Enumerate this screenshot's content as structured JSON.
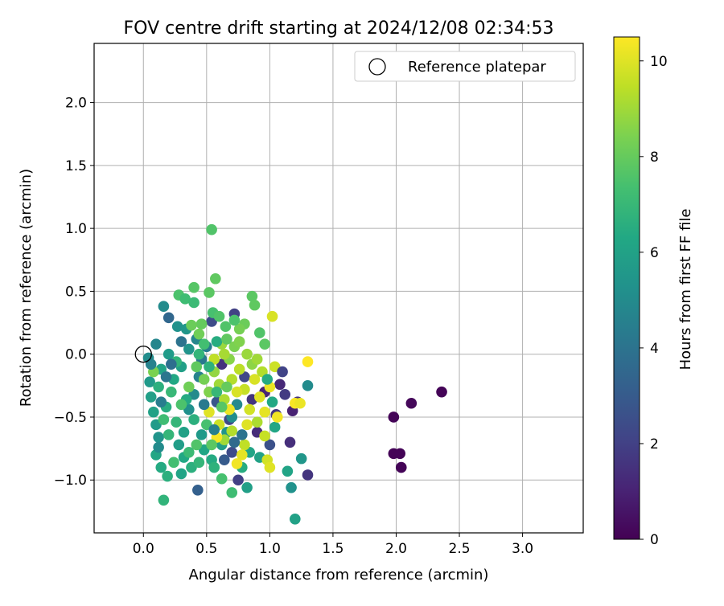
{
  "chart_data": {
    "type": "scatter",
    "title": "FOV centre drift starting at 2024/12/08 02:34:53",
    "xlabel": "Angular distance from reference (arcmin)",
    "ylabel": "Rotation from reference (arcmin)",
    "xlim": [
      -0.39,
      3.48
    ],
    "ylim": [
      -1.42,
      2.47
    ],
    "xticks": [
      0.0,
      0.5,
      1.0,
      1.5,
      2.0,
      2.5,
      3.0
    ],
    "xtick_labels": [
      "0.0",
      "0.5",
      "1.0",
      "1.5",
      "2.0",
      "2.5",
      "3.0"
    ],
    "yticks": [
      -1.0,
      -0.5,
      0.0,
      0.5,
      1.0,
      1.5,
      2.0
    ],
    "ytick_labels": [
      "−1.0",
      "−0.5",
      "0.0",
      "0.5",
      "1.0",
      "1.5",
      "2.0"
    ],
    "grid": true,
    "legend": {
      "placement": "top-right",
      "entries": [
        {
          "label": "Reference platepar",
          "marker": "open-circle"
        }
      ]
    },
    "reference_point": {
      "x": 0.0,
      "y": 0.0
    },
    "colorbar": {
      "label": "Hours from first FF file",
      "range": [
        0,
        10.5
      ],
      "ticks": [
        0,
        2,
        4,
        6,
        8,
        10
      ],
      "tick_labels": [
        "0",
        "2",
        "4",
        "6",
        "8",
        "10"
      ],
      "colormap": "viridis"
    },
    "points": [
      {
        "x": 1.98,
        "y": -0.5,
        "h": 0.1
      },
      {
        "x": 2.12,
        "y": -0.39,
        "h": 0.2
      },
      {
        "x": 2.36,
        "y": -0.3,
        "h": 0.1
      },
      {
        "x": 1.98,
        "y": -0.79,
        "h": 0.1
      },
      {
        "x": 2.03,
        "y": -0.79,
        "h": 0.1
      },
      {
        "x": 2.04,
        "y": -0.9,
        "h": 0.1
      },
      {
        "x": 1.3,
        "y": -0.96,
        "h": 1.6
      },
      {
        "x": 1.16,
        "y": -0.7,
        "h": 1.4
      },
      {
        "x": 1.08,
        "y": -0.24,
        "h": 1.2
      },
      {
        "x": 1.12,
        "y": -0.32,
        "h": 1.8
      },
      {
        "x": 1.18,
        "y": -0.45,
        "h": 1.0
      },
      {
        "x": 1.22,
        "y": -0.38,
        "h": 1.5
      },
      {
        "x": 1.05,
        "y": -0.48,
        "h": 1.7
      },
      {
        "x": 0.72,
        "y": 0.32,
        "h": 2.0
      },
      {
        "x": 0.54,
        "y": 0.26,
        "h": 2.4
      },
      {
        "x": 0.96,
        "y": -0.3,
        "h": 1.1
      },
      {
        "x": 0.9,
        "y": -0.62,
        "h": 1.3
      },
      {
        "x": 0.68,
        "y": -0.52,
        "h": 2.3
      },
      {
        "x": 0.75,
        "y": -1.0,
        "h": 2.0
      },
      {
        "x": 0.43,
        "y": -1.08,
        "h": 3.2
      },
      {
        "x": 0.2,
        "y": 0.29,
        "h": 3.5
      },
      {
        "x": 0.62,
        "y": -0.08,
        "h": 1.5
      },
      {
        "x": 0.8,
        "y": -0.18,
        "h": 2.2
      },
      {
        "x": 0.58,
        "y": -0.38,
        "h": 2.8
      },
      {
        "x": 0.86,
        "y": -0.36,
        "h": 1.6
      },
      {
        "x": 1.0,
        "y": -0.72,
        "h": 2.6
      },
      {
        "x": 0.7,
        "y": -0.78,
        "h": 2.4
      },
      {
        "x": 0.16,
        "y": 0.38,
        "h": 5.0
      },
      {
        "x": 0.27,
        "y": 0.22,
        "h": 5.3
      },
      {
        "x": 0.34,
        "y": 0.2,
        "h": 5.5
      },
      {
        "x": 0.1,
        "y": 0.08,
        "h": 4.8
      },
      {
        "x": 0.04,
        "y": -0.03,
        "h": 5.1
      },
      {
        "x": 0.05,
        "y": -0.22,
        "h": 5.6
      },
      {
        "x": 0.06,
        "y": -0.34,
        "h": 5.9
      },
      {
        "x": 0.08,
        "y": -0.46,
        "h": 6.0
      },
      {
        "x": 0.1,
        "y": -0.56,
        "h": 5.7
      },
      {
        "x": 0.12,
        "y": -0.66,
        "h": 5.4
      },
      {
        "x": 0.1,
        "y": -0.8,
        "h": 6.2
      },
      {
        "x": 0.14,
        "y": -0.9,
        "h": 6.4
      },
      {
        "x": 0.19,
        "y": -0.97,
        "h": 6.6
      },
      {
        "x": 0.16,
        "y": -1.16,
        "h": 6.8
      },
      {
        "x": 0.3,
        "y": -0.95,
        "h": 6.1
      },
      {
        "x": 0.28,
        "y": -0.72,
        "h": 5.8
      },
      {
        "x": 0.18,
        "y": -0.42,
        "h": 6.5
      },
      {
        "x": 0.22,
        "y": -0.3,
        "h": 7.0
      },
      {
        "x": 0.26,
        "y": -0.54,
        "h": 6.9
      },
      {
        "x": 0.32,
        "y": -0.62,
        "h": 6.0
      },
      {
        "x": 0.36,
        "y": -0.44,
        "h": 5.2
      },
      {
        "x": 0.4,
        "y": -0.32,
        "h": 5.0
      },
      {
        "x": 0.44,
        "y": -0.18,
        "h": 4.6
      },
      {
        "x": 0.46,
        "y": -0.04,
        "h": 4.2
      },
      {
        "x": 0.5,
        "y": 0.06,
        "h": 4.4
      },
      {
        "x": 0.42,
        "y": 0.12,
        "h": 4.8
      },
      {
        "x": 0.36,
        "y": 0.04,
        "h": 5.4
      },
      {
        "x": 0.3,
        "y": -0.1,
        "h": 5.9
      },
      {
        "x": 0.24,
        "y": -0.2,
        "h": 6.3
      },
      {
        "x": 0.14,
        "y": -0.12,
        "h": 6.1
      },
      {
        "x": 0.2,
        "y": 0.0,
        "h": 5.7
      },
      {
        "x": 0.12,
        "y": -0.26,
        "h": 6.6
      },
      {
        "x": 0.32,
        "y": -0.82,
        "h": 6.3
      },
      {
        "x": 0.38,
        "y": -0.9,
        "h": 6.6
      },
      {
        "x": 0.44,
        "y": -0.86,
        "h": 6.9
      },
      {
        "x": 0.48,
        "y": -0.76,
        "h": 6.2
      },
      {
        "x": 0.54,
        "y": -0.84,
        "h": 6.4
      },
      {
        "x": 0.56,
        "y": -0.9,
        "h": 6.7
      },
      {
        "x": 0.62,
        "y": -0.72,
        "h": 5.8
      },
      {
        "x": 0.66,
        "y": -0.62,
        "h": 5.4
      },
      {
        "x": 0.7,
        "y": -0.5,
        "h": 5.1
      },
      {
        "x": 0.74,
        "y": -0.4,
        "h": 4.9
      },
      {
        "x": 0.78,
        "y": -0.9,
        "h": 6.5
      },
      {
        "x": 0.84,
        "y": -0.78,
        "h": 6.1
      },
      {
        "x": 0.92,
        "y": -0.82,
        "h": 6.0
      },
      {
        "x": 1.04,
        "y": -0.58,
        "h": 6.2
      },
      {
        "x": 1.14,
        "y": -0.93,
        "h": 6.1
      },
      {
        "x": 1.25,
        "y": -0.83,
        "h": 5.5
      },
      {
        "x": 1.3,
        "y": -0.25,
        "h": 5.0
      },
      {
        "x": 1.17,
        "y": -1.06,
        "h": 5.3
      },
      {
        "x": 1.2,
        "y": -1.31,
        "h": 6.0
      },
      {
        "x": 0.82,
        "y": -1.06,
        "h": 5.9
      },
      {
        "x": 0.7,
        "y": -1.1,
        "h": 7.2
      },
      {
        "x": 0.62,
        "y": -0.99,
        "h": 7.4
      },
      {
        "x": 0.4,
        "y": 0.53,
        "h": 7.7
      },
      {
        "x": 0.52,
        "y": 0.49,
        "h": 7.8
      },
      {
        "x": 0.57,
        "y": 0.6,
        "h": 7.9
      },
      {
        "x": 0.54,
        "y": 0.99,
        "h": 7.6
      },
      {
        "x": 0.28,
        "y": 0.47,
        "h": 7.5
      },
      {
        "x": 0.33,
        "y": 0.44,
        "h": 7.2
      },
      {
        "x": 0.4,
        "y": 0.41,
        "h": 7.1
      },
      {
        "x": 0.55,
        "y": 0.33,
        "h": 7.4
      },
      {
        "x": 0.6,
        "y": 0.3,
        "h": 7.6
      },
      {
        "x": 0.86,
        "y": 0.46,
        "h": 7.8
      },
      {
        "x": 0.88,
        "y": 0.39,
        "h": 7.9
      },
      {
        "x": 0.8,
        "y": 0.24,
        "h": 8.1
      },
      {
        "x": 0.76,
        "y": 0.2,
        "h": 8.3
      },
      {
        "x": 0.72,
        "y": 0.27,
        "h": 7.5
      },
      {
        "x": 0.65,
        "y": 0.22,
        "h": 7.6
      },
      {
        "x": 0.46,
        "y": 0.24,
        "h": 8.0
      },
      {
        "x": 0.44,
        "y": 0.16,
        "h": 8.2
      },
      {
        "x": 0.38,
        "y": 0.23,
        "h": 8.1
      },
      {
        "x": 0.92,
        "y": 0.17,
        "h": 7.6
      },
      {
        "x": 0.96,
        "y": 0.08,
        "h": 7.8
      },
      {
        "x": 1.02,
        "y": 0.3,
        "h": 9.9
      },
      {
        "x": 0.08,
        "y": -0.14,
        "h": 8.4
      },
      {
        "x": 0.36,
        "y": -0.26,
        "h": 8.2
      },
      {
        "x": 0.42,
        "y": -0.1,
        "h": 7.9
      },
      {
        "x": 0.48,
        "y": -0.2,
        "h": 8.3
      },
      {
        "x": 0.52,
        "y": -0.3,
        "h": 8.5
      },
      {
        "x": 0.56,
        "y": -0.14,
        "h": 8.8
      },
      {
        "x": 0.6,
        "y": -0.24,
        "h": 9.0
      },
      {
        "x": 0.64,
        "y": -0.36,
        "h": 9.2
      },
      {
        "x": 0.68,
        "y": -0.04,
        "h": 8.6
      },
      {
        "x": 0.72,
        "y": 0.06,
        "h": 8.4
      },
      {
        "x": 0.76,
        "y": -0.12,
        "h": 9.4
      },
      {
        "x": 0.8,
        "y": -0.28,
        "h": 9.6
      },
      {
        "x": 0.84,
        "y": -0.44,
        "h": 9.8
      },
      {
        "x": 0.88,
        "y": -0.2,
        "h": 9.9
      },
      {
        "x": 0.92,
        "y": -0.34,
        "h": 10.0
      },
      {
        "x": 0.96,
        "y": -0.46,
        "h": 10.1
      },
      {
        "x": 1.0,
        "y": -0.26,
        "h": 10.2
      },
      {
        "x": 1.04,
        "y": -0.1,
        "h": 9.7
      },
      {
        "x": 1.06,
        "y": -0.5,
        "h": 10.3
      },
      {
        "x": 1.2,
        "y": -0.39,
        "h": 10.4
      },
      {
        "x": 1.24,
        "y": -0.39,
        "h": 10.2
      },
      {
        "x": 1.3,
        "y": -0.06,
        "h": 10.5
      },
      {
        "x": 0.98,
        "y": -0.84,
        "h": 9.8
      },
      {
        "x": 1.0,
        "y": -0.9,
        "h": 10.0
      },
      {
        "x": 0.96,
        "y": -0.65,
        "h": 9.6
      },
      {
        "x": 0.8,
        "y": -0.72,
        "h": 9.5
      },
      {
        "x": 0.78,
        "y": -0.8,
        "h": 10.1
      },
      {
        "x": 0.74,
        "y": -0.87,
        "h": 10.3
      },
      {
        "x": 0.7,
        "y": -0.61,
        "h": 9.3
      },
      {
        "x": 0.64,
        "y": -0.68,
        "h": 9.0
      },
      {
        "x": 0.6,
        "y": -0.56,
        "h": 9.7
      },
      {
        "x": 0.58,
        "y": -0.66,
        "h": 10.4
      },
      {
        "x": 0.52,
        "y": -0.46,
        "h": 10.0
      },
      {
        "x": 0.56,
        "y": -0.04,
        "h": 9.5
      },
      {
        "x": 0.64,
        "y": 0.0,
        "h": 9.1
      },
      {
        "x": 0.62,
        "y": 0.08,
        "h": 8.9
      },
      {
        "x": 0.7,
        "y": -0.2,
        "h": 9.3
      },
      {
        "x": 0.74,
        "y": -0.3,
        "h": 9.9
      },
      {
        "x": 0.68,
        "y": -0.44,
        "h": 10.2
      },
      {
        "x": 0.82,
        "y": -0.56,
        "h": 10.0
      },
      {
        "x": 0.9,
        "y": -0.54,
        "h": 9.2
      },
      {
        "x": 0.86,
        "y": -0.08,
        "h": 8.7
      },
      {
        "x": 0.26,
        "y": -0.06,
        "h": 6.8
      },
      {
        "x": 0.34,
        "y": -0.36,
        "h": 6.4
      },
      {
        "x": 0.4,
        "y": -0.52,
        "h": 6.6
      },
      {
        "x": 0.46,
        "y": -0.64,
        "h": 5.6
      },
      {
        "x": 0.5,
        "y": -0.56,
        "h": 7.4
      },
      {
        "x": 0.54,
        "y": -0.72,
        "h": 7.8
      },
      {
        "x": 0.42,
        "y": -0.72,
        "h": 7.6
      },
      {
        "x": 0.36,
        "y": -0.78,
        "h": 7.1
      },
      {
        "x": 0.24,
        "y": -0.86,
        "h": 7.3
      },
      {
        "x": 0.2,
        "y": -0.64,
        "h": 6.9
      },
      {
        "x": 0.16,
        "y": -0.52,
        "h": 7.2
      },
      {
        "x": 0.3,
        "y": -0.4,
        "h": 7.5
      },
      {
        "x": 0.58,
        "y": -0.3,
        "h": 7.0
      },
      {
        "x": 0.62,
        "y": -0.42,
        "h": 7.7
      },
      {
        "x": 0.66,
        "y": -0.26,
        "h": 8.0
      },
      {
        "x": 0.48,
        "y": 0.08,
        "h": 7.3
      },
      {
        "x": 0.44,
        "y": 0.0,
        "h": 6.9
      },
      {
        "x": 0.52,
        "y": -0.1,
        "h": 6.7
      },
      {
        "x": 0.58,
        "y": 0.1,
        "h": 6.5
      },
      {
        "x": 0.66,
        "y": 0.12,
        "h": 7.9
      },
      {
        "x": 0.76,
        "y": 0.1,
        "h": 8.5
      },
      {
        "x": 0.82,
        "y": 0.0,
        "h": 8.9
      },
      {
        "x": 0.9,
        "y": -0.04,
        "h": 9.0
      },
      {
        "x": 0.94,
        "y": -0.14,
        "h": 9.3
      },
      {
        "x": 0.98,
        "y": -0.2,
        "h": 6.4
      },
      {
        "x": 1.02,
        "y": -0.38,
        "h": 6.3
      },
      {
        "x": 1.1,
        "y": -0.14,
        "h": 2.1
      },
      {
        "x": 0.78,
        "y": -0.64,
        "h": 4.0
      },
      {
        "x": 0.72,
        "y": -0.7,
        "h": 3.6
      },
      {
        "x": 0.64,
        "y": -0.84,
        "h": 3.0
      },
      {
        "x": 0.56,
        "y": -0.6,
        "h": 4.5
      },
      {
        "x": 0.48,
        "y": -0.4,
        "h": 4.3
      },
      {
        "x": 0.12,
        "y": -0.74,
        "h": 5.0
      },
      {
        "x": 0.18,
        "y": -0.18,
        "h": 4.1
      },
      {
        "x": 0.22,
        "y": -0.08,
        "h": 3.8
      },
      {
        "x": 0.3,
        "y": 0.1,
        "h": 4.0
      },
      {
        "x": 0.06,
        "y": -0.08,
        "h": 4.6
      },
      {
        "x": 0.14,
        "y": -0.38,
        "h": 4.4
      }
    ]
  }
}
